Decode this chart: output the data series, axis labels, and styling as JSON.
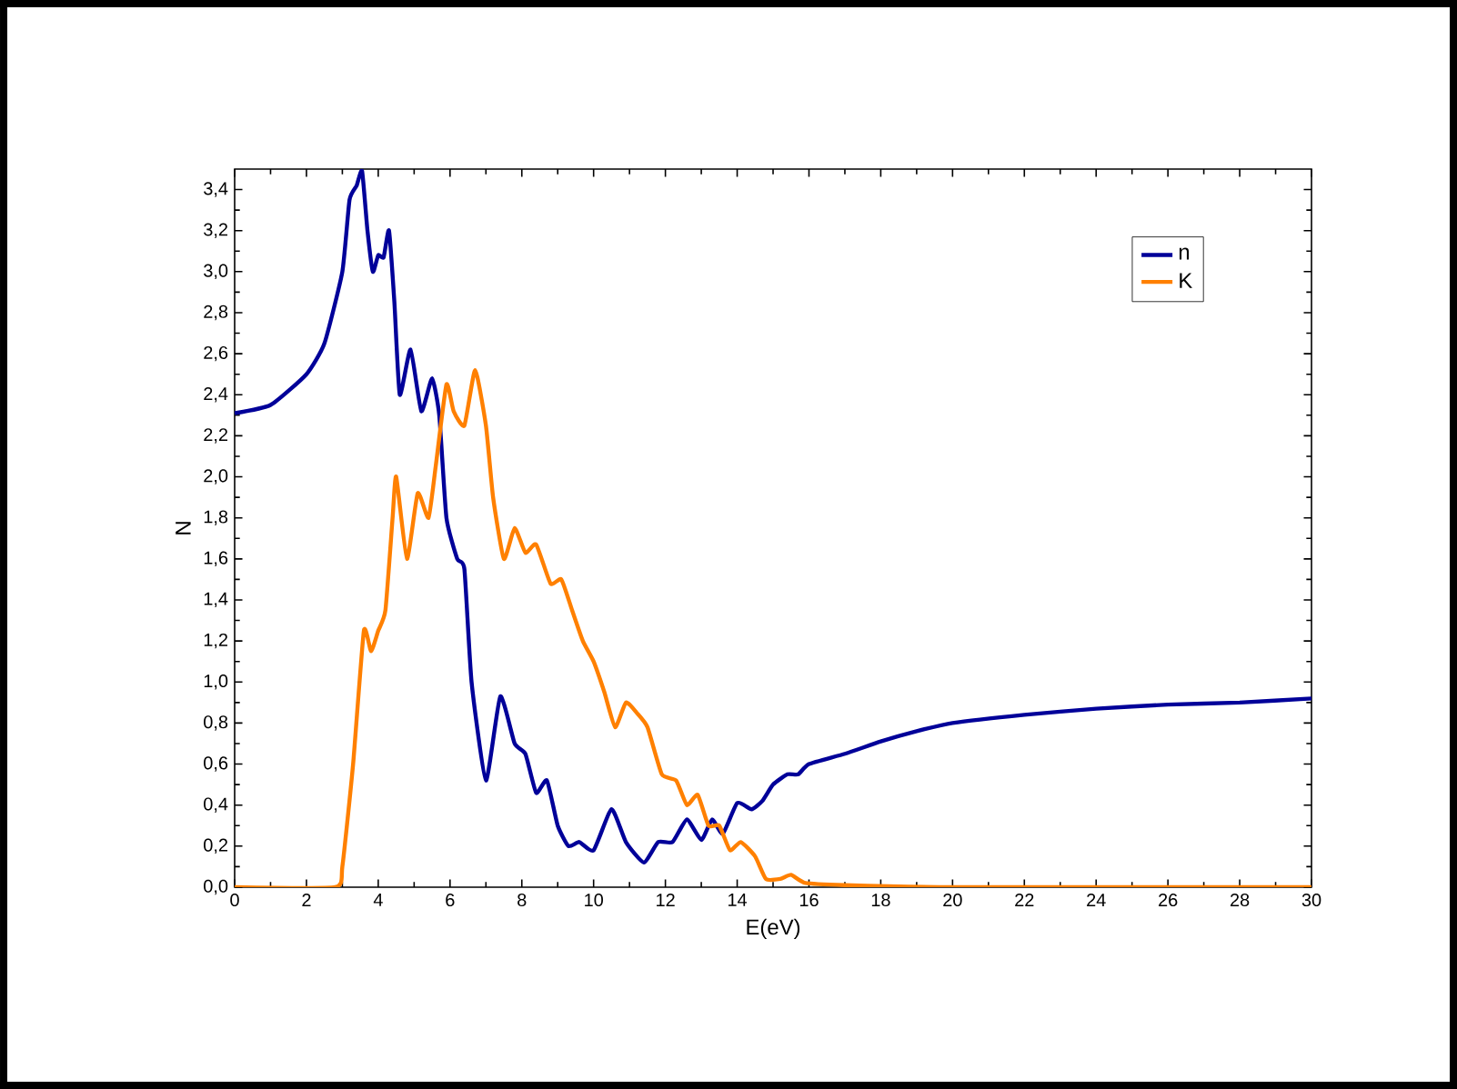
{
  "chart_data": {
    "type": "line",
    "xlabel": "E(eV)",
    "ylabel": "N",
    "x": [
      0,
      1,
      2,
      2.5,
      3,
      3.2,
      3.4,
      3.55,
      3.7,
      3.85,
      4.0,
      4.15,
      4.3,
      4.45,
      4.6,
      4.9,
      5.2,
      5.5,
      5.7,
      5.9,
      6.2,
      6.4,
      6.6,
      7.0,
      7.4,
      7.8,
      8.1,
      8.4,
      8.7,
      9.0,
      9.3,
      9.6,
      10.0,
      10.5,
      10.9,
      11.4,
      11.8,
      12.2,
      12.6,
      13.0,
      13.3,
      13.6,
      14.0,
      14.4,
      14.7,
      15.0,
      15.4,
      15.7,
      16,
      17,
      18,
      19,
      20,
      22,
      24,
      26,
      28,
      30
    ],
    "series": [
      {
        "name": "n",
        "color": "#000099",
        "values": [
          2.31,
          2.35,
          2.5,
          2.65,
          3.0,
          3.35,
          3.42,
          3.49,
          3.2,
          3.0,
          3.08,
          3.07,
          3.2,
          2.85,
          2.4,
          2.62,
          2.32,
          2.48,
          2.3,
          1.8,
          1.6,
          1.55,
          1.0,
          0.52,
          0.93,
          0.7,
          0.65,
          0.46,
          0.52,
          0.3,
          0.2,
          0.22,
          0.18,
          0.38,
          0.22,
          0.12,
          0.22,
          0.22,
          0.33,
          0.23,
          0.33,
          0.26,
          0.41,
          0.38,
          0.42,
          0.5,
          0.55,
          0.55,
          0.6,
          0.65,
          0.71,
          0.76,
          0.8,
          0.84,
          0.87,
          0.89,
          0.9,
          0.92
        ]
      },
      {
        "name": "K",
        "color": "#ff8000",
        "x": [
          0,
          2.8,
          3.0,
          3.3,
          3.6,
          3.8,
          4.0,
          4.2,
          4.4,
          4.5,
          4.8,
          5.1,
          5.4,
          5.6,
          5.9,
          6.1,
          6.4,
          6.7,
          7.0,
          7.2,
          7.5,
          7.8,
          8.1,
          8.4,
          8.8,
          9.1,
          9.4,
          9.7,
          10.0,
          10.3,
          10.6,
          10.9,
          11.2,
          11.5,
          11.9,
          12.3,
          12.6,
          12.9,
          13.2,
          13.5,
          13.8,
          14.1,
          14.5,
          14.8,
          15.2,
          15.5,
          15.9,
          17,
          20,
          30
        ],
        "values": [
          0,
          0,
          0.1,
          0.6,
          1.25,
          1.15,
          1.25,
          1.35,
          1.8,
          2.0,
          1.6,
          1.92,
          1.8,
          2.05,
          2.45,
          2.32,
          2.25,
          2.52,
          2.25,
          1.9,
          1.6,
          1.75,
          1.63,
          1.67,
          1.48,
          1.5,
          1.35,
          1.2,
          1.1,
          0.95,
          0.78,
          0.9,
          0.85,
          0.78,
          0.55,
          0.52,
          0.4,
          0.45,
          0.3,
          0.3,
          0.18,
          0.22,
          0.15,
          0.04,
          0.04,
          0.06,
          0.02,
          0.01,
          0,
          0
        ]
      }
    ],
    "xlim": [
      0,
      30
    ],
    "ylim": [
      0,
      3.5
    ],
    "xticks": [
      0,
      2,
      4,
      6,
      8,
      10,
      12,
      14,
      16,
      18,
      20,
      22,
      24,
      26,
      28,
      30
    ],
    "yticks": [
      {
        "value": 0,
        "label": "0,0"
      },
      {
        "value": 0.2,
        "label": "0,2"
      },
      {
        "value": 0.4,
        "label": "0,4"
      },
      {
        "value": 0.6,
        "label": "0,6"
      },
      {
        "value": 0.8,
        "label": "0,8"
      },
      {
        "value": 1.0,
        "label": "1,0"
      },
      {
        "value": 1.2,
        "label": "1,2"
      },
      {
        "value": 1.4,
        "label": "1,4"
      },
      {
        "value": 1.6,
        "label": "1,6"
      },
      {
        "value": 1.8,
        "label": "1,8"
      },
      {
        "value": 2.0,
        "label": "2,0"
      },
      {
        "value": 2.2,
        "label": "2,2"
      },
      {
        "value": 2.4,
        "label": "2,4"
      },
      {
        "value": 2.6,
        "label": "2,6"
      },
      {
        "value": 2.8,
        "label": "2,8"
      },
      {
        "value": 3.0,
        "label": "3,0"
      },
      {
        "value": 3.2,
        "label": "3,2"
      },
      {
        "value": 3.4,
        "label": "3,4"
      }
    ],
    "legend": "top right",
    "line_style": "solid",
    "marker": "none",
    "grid": false
  }
}
